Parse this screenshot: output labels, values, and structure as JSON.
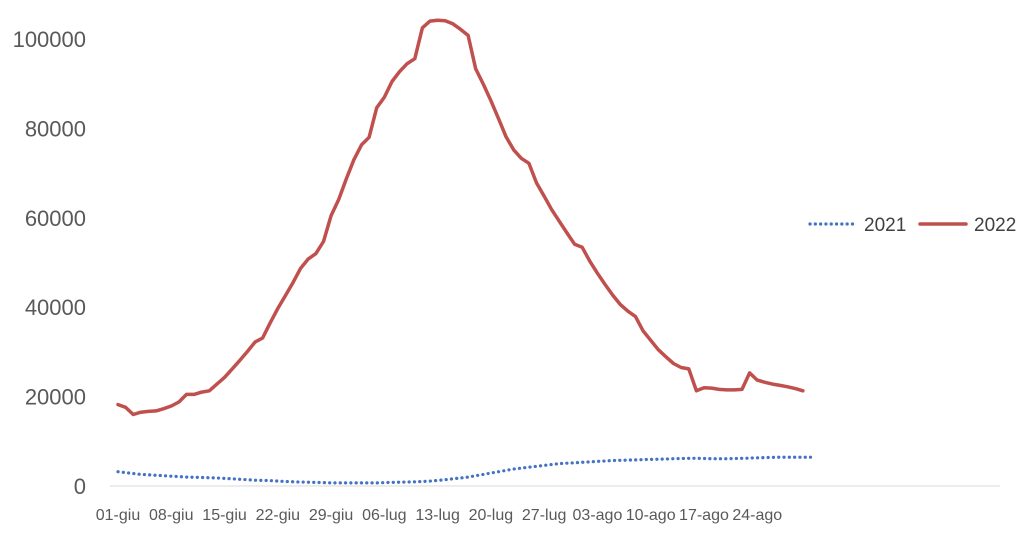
{
  "chart_data": {
    "type": "line",
    "title": "",
    "xlabel": "",
    "ylabel": "",
    "ylim": [
      0,
      105000
    ],
    "yticks": [
      0,
      20000,
      40000,
      60000,
      80000,
      100000
    ],
    "ytick_labels": [
      "0",
      "20000",
      "40000",
      "60000",
      "80000",
      "100000"
    ],
    "x_tick_labels": [
      "01-giu",
      "08-giu",
      "15-giu",
      "22-giu",
      "29-giu",
      "06-lug",
      "13-lug",
      "20-lug",
      "27-lug",
      "03-ago",
      "10-ago",
      "17-ago",
      "24-ago"
    ],
    "x_tick_index": [
      0,
      7,
      14,
      21,
      28,
      35,
      42,
      49,
      56,
      63,
      70,
      77,
      84
    ],
    "grid": false,
    "legend_position": "right",
    "series": [
      {
        "name": "2021",
        "style": "dotted",
        "color": "#4472C4",
        "values": [
          3200,
          3000,
          2800,
          2600,
          2500,
          2400,
          2300,
          2200,
          2100,
          2000,
          1950,
          1900,
          1850,
          1800,
          1700,
          1600,
          1500,
          1400,
          1300,
          1250,
          1200,
          1100,
          1000,
          950,
          900,
          850,
          800,
          750,
          700,
          700,
          700,
          700,
          700,
          700,
          700,
          750,
          800,
          850,
          900,
          950,
          1000,
          1100,
          1250,
          1400,
          1600,
          1800,
          2000,
          2300,
          2600,
          2900,
          3200,
          3500,
          3800,
          4000,
          4200,
          4400,
          4600,
          4800,
          5000,
          5100,
          5200,
          5300,
          5400,
          5500,
          5600,
          5700,
          5750,
          5800,
          5850,
          5900,
          5950,
          6000,
          6050,
          6100,
          6150,
          6200,
          6200,
          6150,
          6100,
          6100,
          6100,
          6150,
          6200,
          6250,
          6300,
          6350,
          6400,
          6450,
          6450,
          6450,
          6450,
          6450
        ]
      },
      {
        "name": "2022",
        "style": "solid",
        "color": "#C0504D",
        "values": [
          18200,
          17600,
          16000,
          16500,
          16700,
          16800,
          17300,
          17900,
          18800,
          20500,
          20500,
          21000,
          21300,
          22800,
          24300,
          26200,
          28100,
          30100,
          32200,
          33100,
          36500,
          39700,
          42600,
          45500,
          48700,
          50800,
          52000,
          54700,
          60500,
          64100,
          68700,
          73000,
          76300,
          78000,
          84600,
          87000,
          90500,
          92700,
          94500,
          95600,
          102500,
          104000,
          104200,
          104100,
          103400,
          102200,
          100800,
          93300,
          89900,
          86200,
          82200,
          78100,
          75200,
          73300,
          72200,
          67800,
          64800,
          61800,
          59200,
          56600,
          54100,
          53400,
          50300,
          47600,
          45100,
          42700,
          40600,
          39100,
          37900,
          34700,
          32600,
          30500,
          28900,
          27400,
          26500,
          26200,
          21300,
          22000,
          21900,
          21600,
          21500,
          21500,
          21600,
          25300,
          23700,
          23200,
          22800,
          22500,
          22200,
          21800,
          21300
        ]
      }
    ]
  }
}
